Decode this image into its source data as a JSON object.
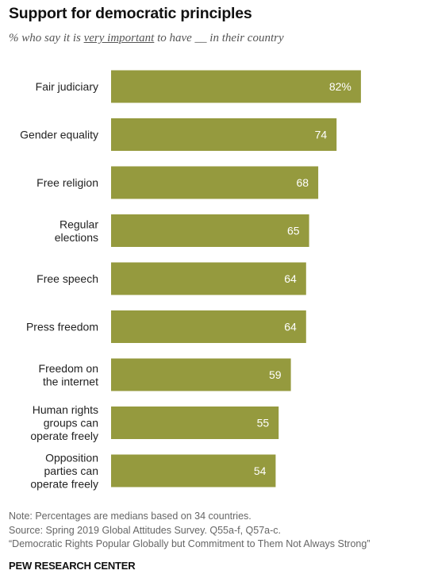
{
  "header": {
    "title": "Support for democratic principles",
    "subtitle_pre": "% who say it is ",
    "subtitle_emph": "very important",
    "subtitle_post": " to have __ in their country"
  },
  "chart_data": {
    "type": "bar",
    "orientation": "horizontal",
    "title": "Support for democratic principles",
    "categories": [
      "Fair judiciary",
      "Gender equality",
      "Free religion",
      "Regular elections",
      "Free speech",
      "Press freedom",
      "Freedom on the internet",
      "Human rights groups can operate freely",
      "Opposition parties can operate freely"
    ],
    "category_lines": [
      [
        "Fair judiciary"
      ],
      [
        "Gender equality"
      ],
      [
        "Free religion"
      ],
      [
        "Regular",
        "elections"
      ],
      [
        "Free speech"
      ],
      [
        "Press freedom"
      ],
      [
        "Freedom on",
        "the internet"
      ],
      [
        "Human rights",
        "groups can",
        "operate freely"
      ],
      [
        "Opposition",
        "parties can",
        "operate freely"
      ]
    ],
    "values": [
      82,
      74,
      68,
      65,
      64,
      64,
      59,
      55,
      54
    ],
    "value_labels": [
      "82%",
      "74",
      "68",
      "65",
      "64",
      "64",
      "59",
      "55",
      "54"
    ],
    "unit": "%",
    "xlim": [
      0,
      100
    ],
    "grid": false,
    "legend": "none",
    "bar_color": "#959a3e",
    "value_label_color": "#ffffff"
  },
  "footer": {
    "note": "Note: Percentages are medians based on 34 countries.",
    "source": "Source: Spring 2019 Global Attitudes Survey. Q55a-f, Q57a-c.",
    "report": "“Democratic Rights Popular Globally but Commitment to Them Not Always Strong”",
    "org": "PEW RESEARCH CENTER"
  }
}
